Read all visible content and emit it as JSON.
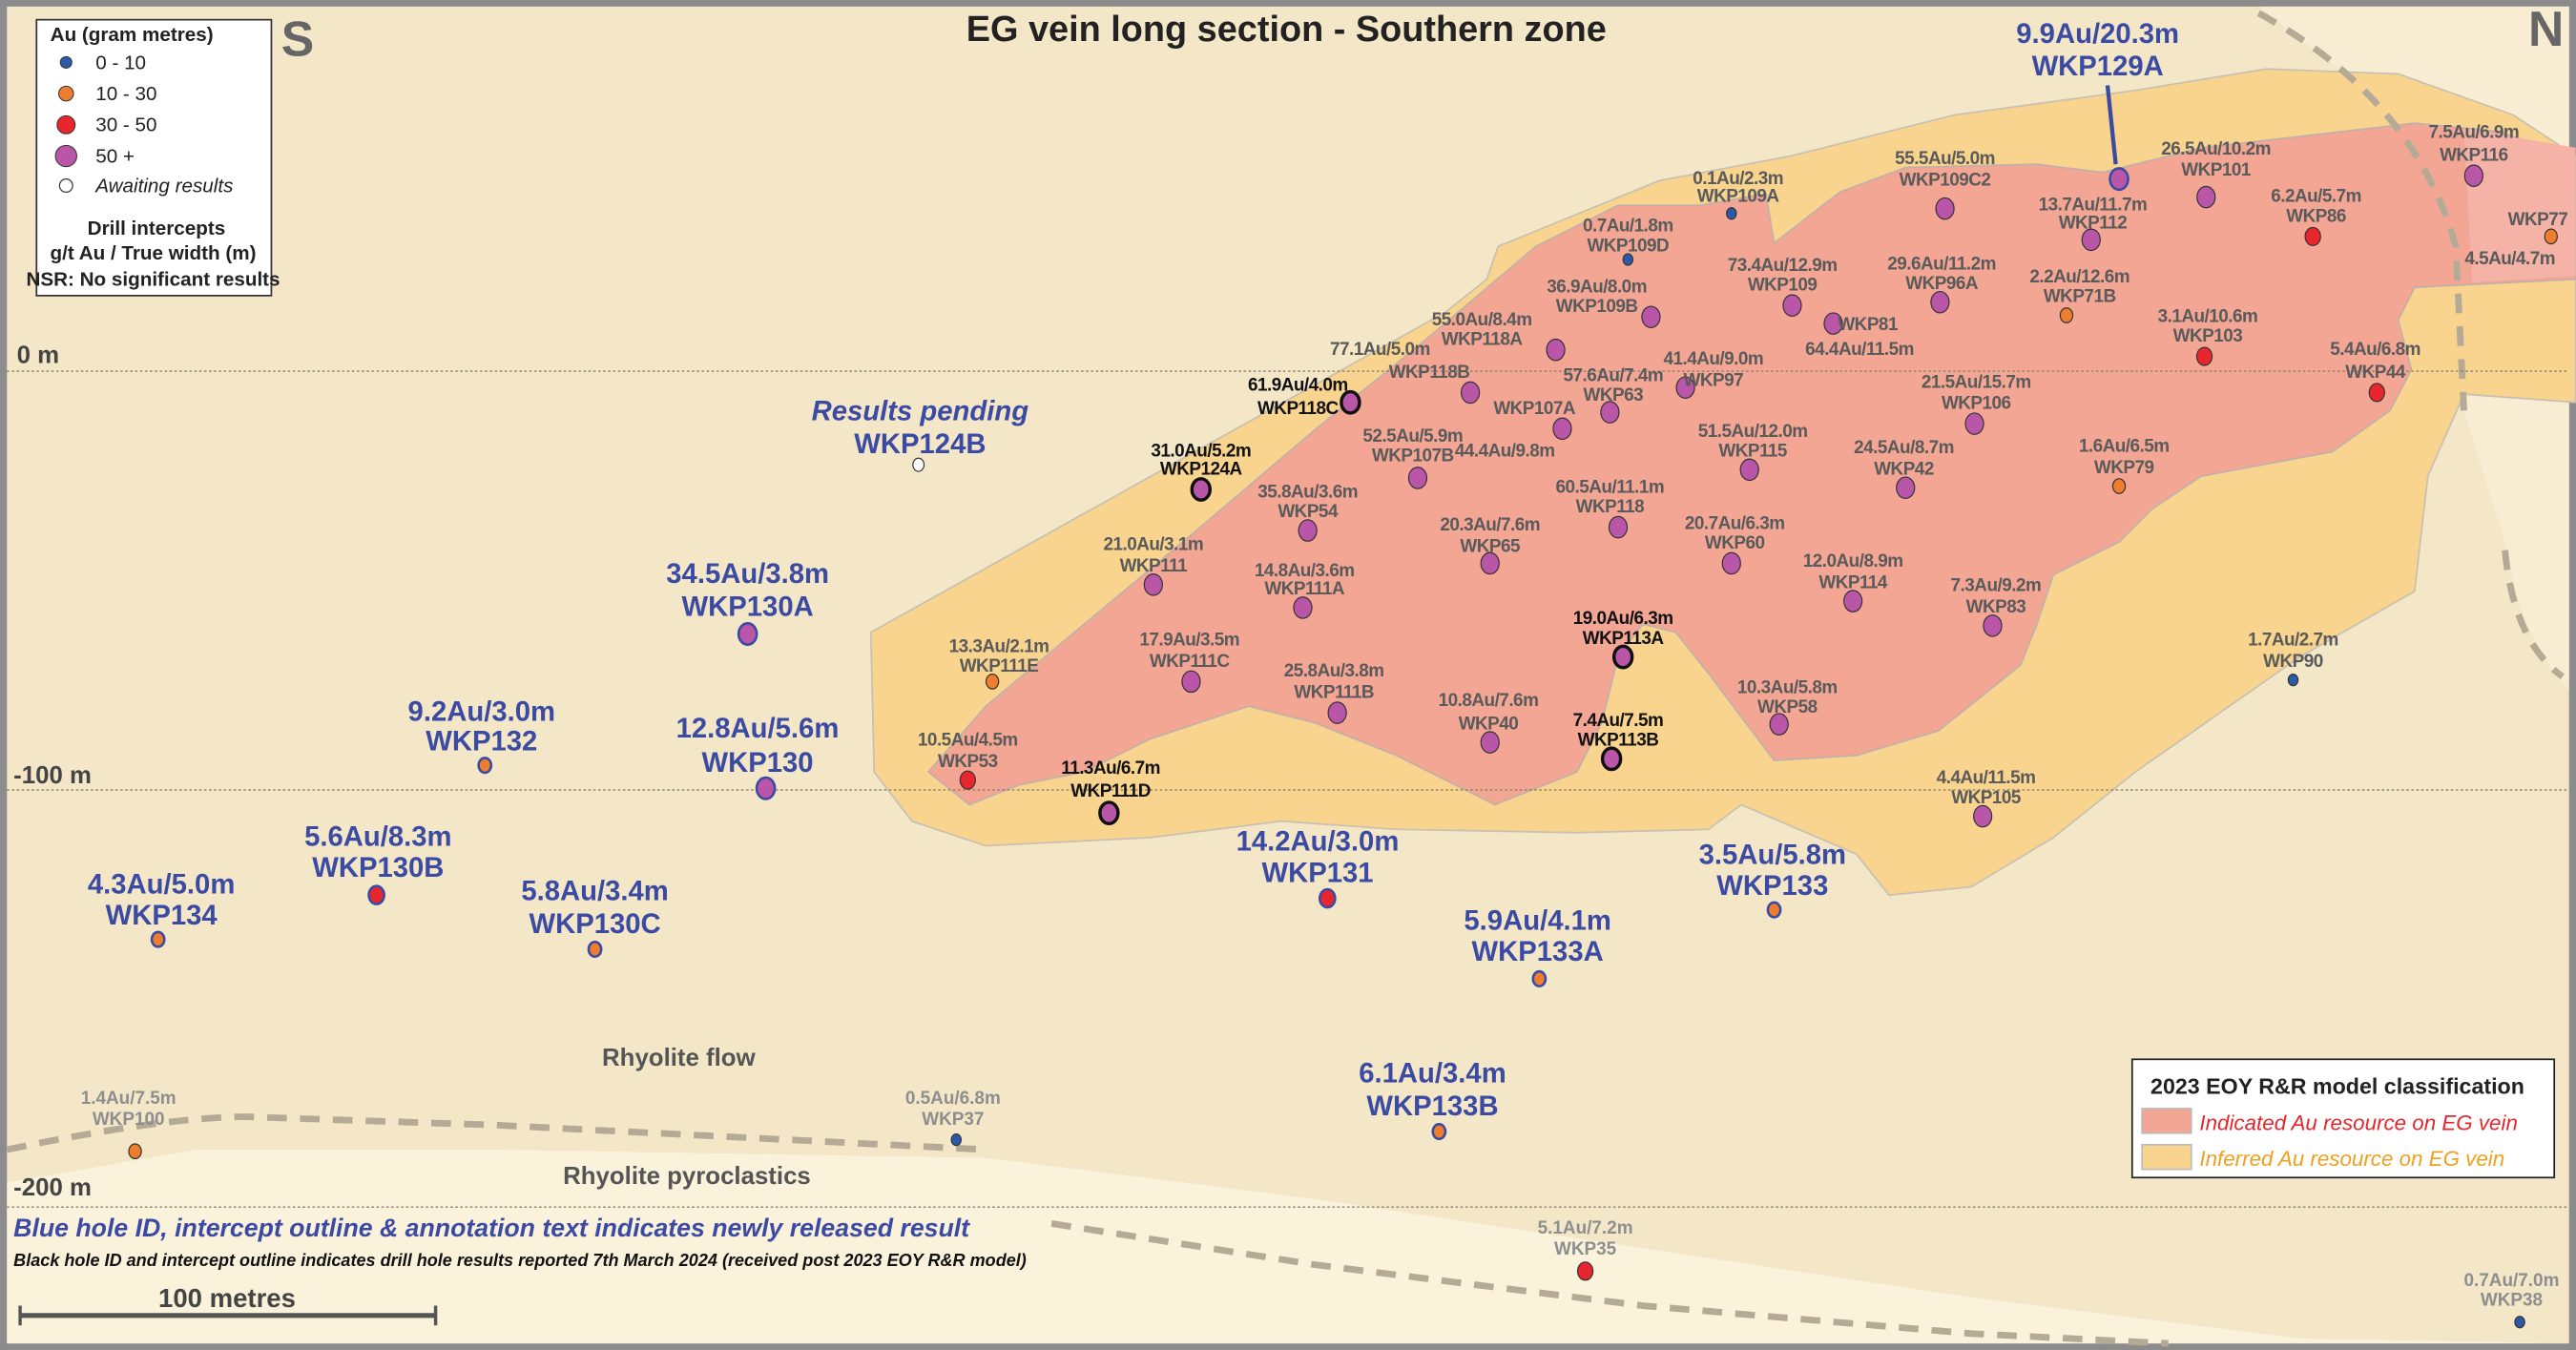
{
  "title": "EG vein long section - Southern zone",
  "compass": {
    "south": "S",
    "north": "N"
  },
  "elevation_labels": [
    "0 m",
    "-100 m",
    "-200 m"
  ],
  "rock_units": [
    "Rhyolite flow",
    "Rhyolite pyroclastics"
  ],
  "scale_bar": "100 metres",
  "legend_au": {
    "title": "Au (gram metres)",
    "classes": [
      {
        "label": "0 - 10",
        "color": "#2a5aa8"
      },
      {
        "label": "10 - 30",
        "color": "#ef7d2e"
      },
      {
        "label": "30 - 50",
        "color": "#e8262e"
      },
      {
        "label": "50 +",
        "color": "#b956a8"
      },
      {
        "label": "Awaiting results",
        "color": "#ffffff"
      }
    ],
    "intercepts_title": "Drill intercepts",
    "intercepts_units": "g/t Au / True width (m)",
    "nsr": "NSR: No significant results"
  },
  "legend_model": {
    "title": "2023 EOY R&R model classification",
    "indicated": {
      "label": "Indicated Au resource on EG vein",
      "color": "#f4a695",
      "text_color": "#e8262e"
    },
    "inferred": {
      "label": "Inferred Au resource on EG vein",
      "color": "#f8d48f",
      "text_color": "#f0a020"
    }
  },
  "notes": {
    "blue": "Blue hole ID, intercept outline & annotation text indicates newly released result",
    "black": "Black hole ID and intercept outline indicates drill hole results reported 7th March 2024 (received post 2023 EOY R&R model)"
  },
  "holes": [
    {
      "id": "WKP109A",
      "value": "0.1Au/2.3m",
      "cls": 0,
      "status": "prior"
    },
    {
      "id": "WKP109D",
      "value": "0.7Au/1.8m",
      "cls": 0,
      "status": "prior"
    },
    {
      "id": "WKP109C2",
      "value": "55.5Au/5.0m",
      "cls": 3,
      "status": "prior"
    },
    {
      "id": "WKP129A",
      "value": "9.9Au/20.3m",
      "cls": 3,
      "status": "new"
    },
    {
      "id": "WKP112",
      "value": "13.7Au/11.7m",
      "cls": 3,
      "status": "prior"
    },
    {
      "id": "WKP101",
      "value": "26.5Au/10.2m",
      "cls": 3,
      "status": "prior"
    },
    {
      "id": "WKP86",
      "value": "6.2Au/5.7m",
      "cls": 2,
      "status": "prior"
    },
    {
      "id": "WKP116",
      "value": "7.5Au/6.9m",
      "cls": 3,
      "status": "prior"
    },
    {
      "id": "WKP77",
      "value": "4.5Au/4.7m",
      "cls": 1,
      "status": "prior"
    },
    {
      "id": "WKP109",
      "value": "73.4Au/12.9m",
      "cls": 3,
      "status": "prior"
    },
    {
      "id": "WKP109B",
      "value": "36.9Au/8.0m",
      "cls": 3,
      "status": "prior"
    },
    {
      "id": "WKP81",
      "value": "64.4Au/11.5m",
      "cls": 3,
      "status": "prior"
    },
    {
      "id": "WKP96A",
      "value": "29.6Au/11.2m",
      "cls": 3,
      "status": "prior"
    },
    {
      "id": "WKP71B",
      "value": "2.2Au/12.6m",
      "cls": 1,
      "status": "prior"
    },
    {
      "id": "WKP103",
      "value": "3.1Au/10.6m",
      "cls": 2,
      "status": "prior"
    },
    {
      "id": "WKP118A",
      "value": "55.0Au/8.4m",
      "cls": 3,
      "status": "prior"
    },
    {
      "id": "WKP118B",
      "value": "77.1Au/5.0m",
      "cls": 3,
      "status": "prior"
    },
    {
      "id": "WKP44",
      "value": "5.4Au/6.8m",
      "cls": 2,
      "status": "prior"
    },
    {
      "id": "WKP118C",
      "value": "61.9Au/4.0m",
      "cls": 3,
      "status": "reported"
    },
    {
      "id": "WKP63",
      "value": "57.6Au/7.4m",
      "cls": 3,
      "status": "prior"
    },
    {
      "id": "WKP107A",
      "value": "44.4Au/9.8m",
      "cls": 3,
      "status": "prior"
    },
    {
      "id": "WKP97",
      "value": "41.4Au/9.0m",
      "cls": 3,
      "status": "prior"
    },
    {
      "id": "WKP106",
      "value": "21.5Au/15.7m",
      "cls": 3,
      "status": "prior"
    },
    {
      "id": "WKP107B",
      "value": "52.5Au/5.9m",
      "cls": 3,
      "status": "prior"
    },
    {
      "id": "WKP115",
      "value": "51.5Au/12.0m",
      "cls": 3,
      "status": "prior"
    },
    {
      "id": "WKP42",
      "value": "24.5Au/8.7m",
      "cls": 3,
      "status": "prior"
    },
    {
      "id": "WKP79",
      "value": "1.6Au/6.5m",
      "cls": 1,
      "status": "prior"
    },
    {
      "id": "WKP124A",
      "value": "31.0Au/5.2m",
      "cls": 3,
      "status": "reported"
    },
    {
      "id": "WKP124B",
      "value": "Results pending",
      "cls": 4,
      "status": "pending"
    },
    {
      "id": "WKP54",
      "value": "35.8Au/3.6m",
      "cls": 3,
      "status": "prior"
    },
    {
      "id": "WKP118",
      "value": "60.5Au/11.1m",
      "cls": 3,
      "status": "prior"
    },
    {
      "id": "WKP65",
      "value": "20.3Au/7.6m",
      "cls": 3,
      "status": "prior"
    },
    {
      "id": "WKP60",
      "value": "20.7Au/6.3m",
      "cls": 3,
      "status": "prior"
    },
    {
      "id": "WKP111",
      "value": "21.0Au/3.1m",
      "cls": 3,
      "status": "prior"
    },
    {
      "id": "WKP111A",
      "value": "14.8Au/3.6m",
      "cls": 3,
      "status": "prior"
    },
    {
      "id": "WKP114",
      "value": "12.0Au/8.9m",
      "cls": 3,
      "status": "prior"
    },
    {
      "id": "WKP83",
      "value": "7.3Au/9.2m",
      "cls": 3,
      "status": "prior"
    },
    {
      "id": "WKP130A",
      "value": "34.5Au/3.8m",
      "cls": 3,
      "status": "new"
    },
    {
      "id": "WKP113A",
      "value": "19.0Au/6.3m",
      "cls": 3,
      "status": "reported"
    },
    {
      "id": "WKP111E",
      "value": "13.3Au/2.1m",
      "cls": 1,
      "status": "prior"
    },
    {
      "id": "WKP111C",
      "value": "17.9Au/3.5m",
      "cls": 3,
      "status": "prior"
    },
    {
      "id": "WKP90",
      "value": "1.7Au/2.7m",
      "cls": 0,
      "status": "prior"
    },
    {
      "id": "WKP111B",
      "value": "25.8Au/3.8m",
      "cls": 3,
      "status": "prior"
    },
    {
      "id": "WKP58",
      "value": "10.3Au/5.8m",
      "cls": 3,
      "status": "prior"
    },
    {
      "id": "WKP40",
      "value": "10.8Au/7.6m",
      "cls": 3,
      "status": "prior"
    },
    {
      "id": "WKP113B",
      "value": "7.4Au/7.5m",
      "cls": 3,
      "status": "reported"
    },
    {
      "id": "WKP132",
      "value": "9.2Au/3.0m",
      "cls": 1,
      "status": "new"
    },
    {
      "id": "WKP130",
      "value": "12.8Au/5.6m",
      "cls": 3,
      "status": "new"
    },
    {
      "id": "WKP53",
      "value": "10.5Au/4.5m",
      "cls": 2,
      "status": "prior"
    },
    {
      "id": "WKP111D",
      "value": "11.3Au/6.7m",
      "cls": 3,
      "status": "reported"
    },
    {
      "id": "WKP105",
      "value": "4.4Au/11.5m",
      "cls": 3,
      "status": "prior"
    },
    {
      "id": "WKP130B",
      "value": "5.6Au/8.3m",
      "cls": 2,
      "status": "new"
    },
    {
      "id": "WKP134",
      "value": "4.3Au/5.0m",
      "cls": 1,
      "status": "new"
    },
    {
      "id": "WKP131",
      "value": "14.2Au/3.0m",
      "cls": 2,
      "status": "new"
    },
    {
      "id": "WKP130C",
      "value": "5.8Au/3.4m",
      "cls": 1,
      "status": "new"
    },
    {
      "id": "WKP133",
      "value": "3.5Au/5.8m",
      "cls": 1,
      "status": "new"
    },
    {
      "id": "WKP133A",
      "value": "5.9Au/4.1m",
      "cls": 1,
      "status": "new"
    },
    {
      "id": "WKP133B",
      "value": "6.1Au/3.4m",
      "cls": 1,
      "status": "new"
    },
    {
      "id": "WKP100",
      "value": "1.4Au/7.5m",
      "cls": 1,
      "status": "faint"
    },
    {
      "id": "WKP37",
      "value": "0.5Au/6.8m",
      "cls": 0,
      "status": "faint"
    },
    {
      "id": "WKP35",
      "value": "5.1Au/7.2m",
      "cls": 2,
      "status": "faint"
    },
    {
      "id": "WKP38",
      "value": "0.7Au/7.0m",
      "cls": 0,
      "status": "faint"
    }
  ]
}
